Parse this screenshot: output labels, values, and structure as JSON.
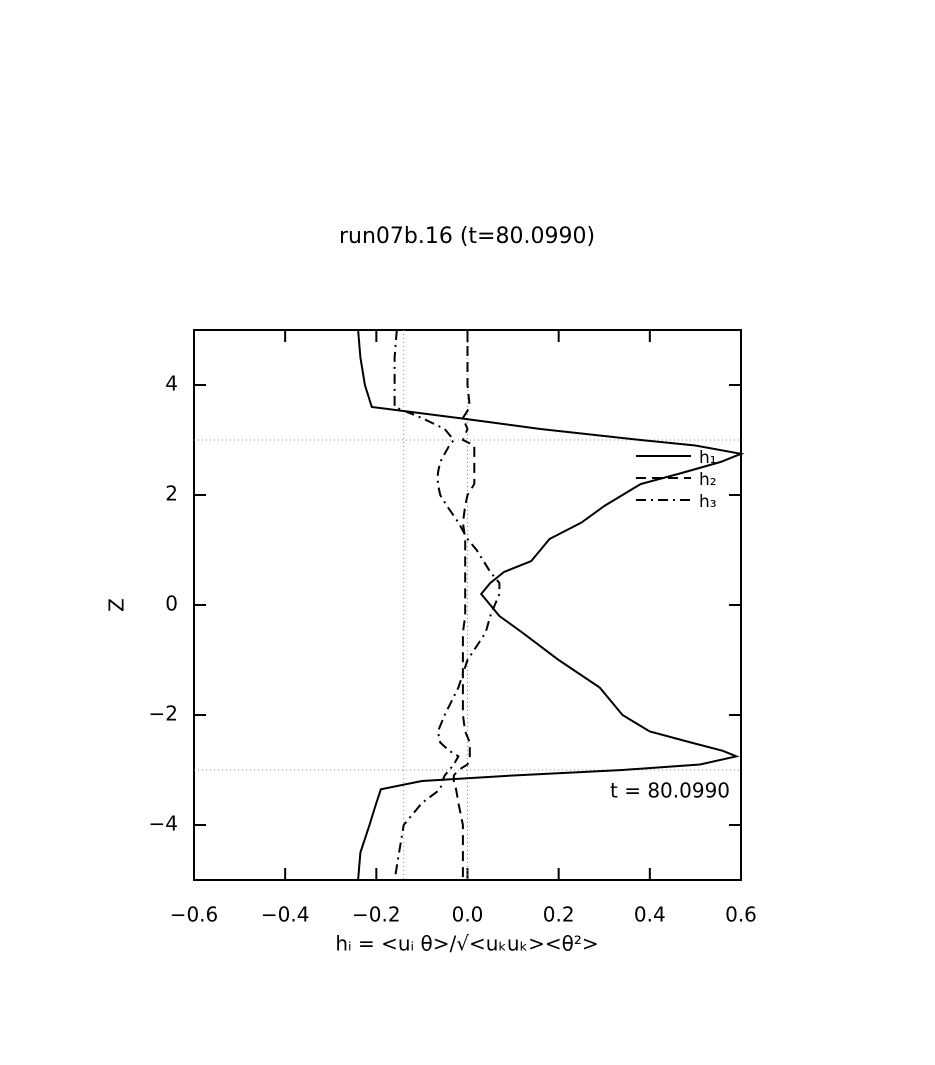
{
  "chart_data": {
    "type": "line",
    "title": "run07b.16 (t=80.0990)",
    "xlabel": "hᵢ = <uᵢ θ>/√<uₖuₖ><θ²>",
    "ylabel": "Z",
    "annotation": "t = 80.0990",
    "y": [
      5,
      4.5,
      4,
      3.6,
      3.4,
      3.2,
      3,
      2.9,
      2.75,
      2.6,
      2.4,
      2.2,
      2,
      1.8,
      1.5,
      1.2,
      1,
      0.8,
      0.6,
      0.4,
      0.2,
      0,
      -0.2,
      -0.5,
      -1,
      -1.5,
      -2,
      -2.3,
      -2.5,
      -2.65,
      -2.75,
      -2.9,
      -3,
      -3.1,
      -3.2,
      -3.35,
      -3.6,
      -4,
      -4.5,
      -5
    ],
    "series": [
      {
        "name": "h₁",
        "color": "#000000",
        "dash": "solid",
        "values": [
          -0.24,
          -0.235,
          -0.225,
          -0.21,
          -0.02,
          0.16,
          0.38,
          0.5,
          0.6,
          0.555,
          0.47,
          0.38,
          0.34,
          0.3,
          0.25,
          0.18,
          0.16,
          0.14,
          0.08,
          0.05,
          0.03,
          0.05,
          0.07,
          0.12,
          0.2,
          0.29,
          0.34,
          0.4,
          0.49,
          0.56,
          0.59,
          0.51,
          0.34,
          0.1,
          -0.1,
          -0.19,
          -0.2,
          -0.215,
          -0.235,
          -0.24
        ]
      },
      {
        "name": "h₂",
        "color": "#000000",
        "dash": "dashed",
        "values": [
          0,
          0,
          0,
          0.005,
          -0.01,
          0,
          -0.01,
          0.015,
          0.015,
          0.015,
          0.015,
          0.015,
          0,
          -0.005,
          -0.01,
          -0.005,
          -0.005,
          -0.005,
          -0.005,
          -0.005,
          -0.005,
          -0.005,
          -0.005,
          -0.01,
          -0.01,
          -0.01,
          -0.01,
          -0.005,
          0.005,
          0.005,
          0.005,
          0,
          -0.02,
          -0.03,
          -0.03,
          -0.025,
          -0.02,
          -0.01,
          -0.01,
          -0.01
        ]
      },
      {
        "name": "h₃",
        "color": "#000000",
        "dash": "dashdot",
        "values": [
          -0.155,
          -0.16,
          -0.16,
          -0.16,
          -0.1,
          -0.05,
          -0.03,
          -0.04,
          -0.05,
          -0.06,
          -0.065,
          -0.065,
          -0.06,
          -0.045,
          -0.02,
          0.0,
          0.02,
          0.035,
          0.05,
          0.07,
          0.07,
          0.06,
          0.05,
          0.04,
          0.0,
          -0.02,
          -0.05,
          -0.065,
          -0.06,
          -0.04,
          -0.02,
          -0.03,
          -0.04,
          -0.05,
          -0.055,
          -0.06,
          -0.1,
          -0.14,
          -0.15,
          -0.16
        ]
      }
    ],
    "xlim": [
      -0.6,
      0.6
    ],
    "ylim": [
      -5,
      5
    ],
    "xticks": [
      {
        "value": -0.6,
        "label": "−0.6"
      },
      {
        "value": -0.4,
        "label": "−0.4"
      },
      {
        "value": -0.2,
        "label": "−0.2"
      },
      {
        "value": 0,
        "label": "0.0"
      },
      {
        "value": 0.2,
        "label": "0.2"
      },
      {
        "value": 0.4,
        "label": "0.4"
      },
      {
        "value": 0.6,
        "label": "0.6"
      }
    ],
    "yticks": [
      {
        "value": -4,
        "label": "−4"
      },
      {
        "value": -2,
        "label": "−2"
      },
      0,
      2,
      4
    ],
    "hlines": [
      3,
      -3
    ],
    "vlines": [
      -0.14,
      0
    ],
    "legend": "upper right"
  }
}
